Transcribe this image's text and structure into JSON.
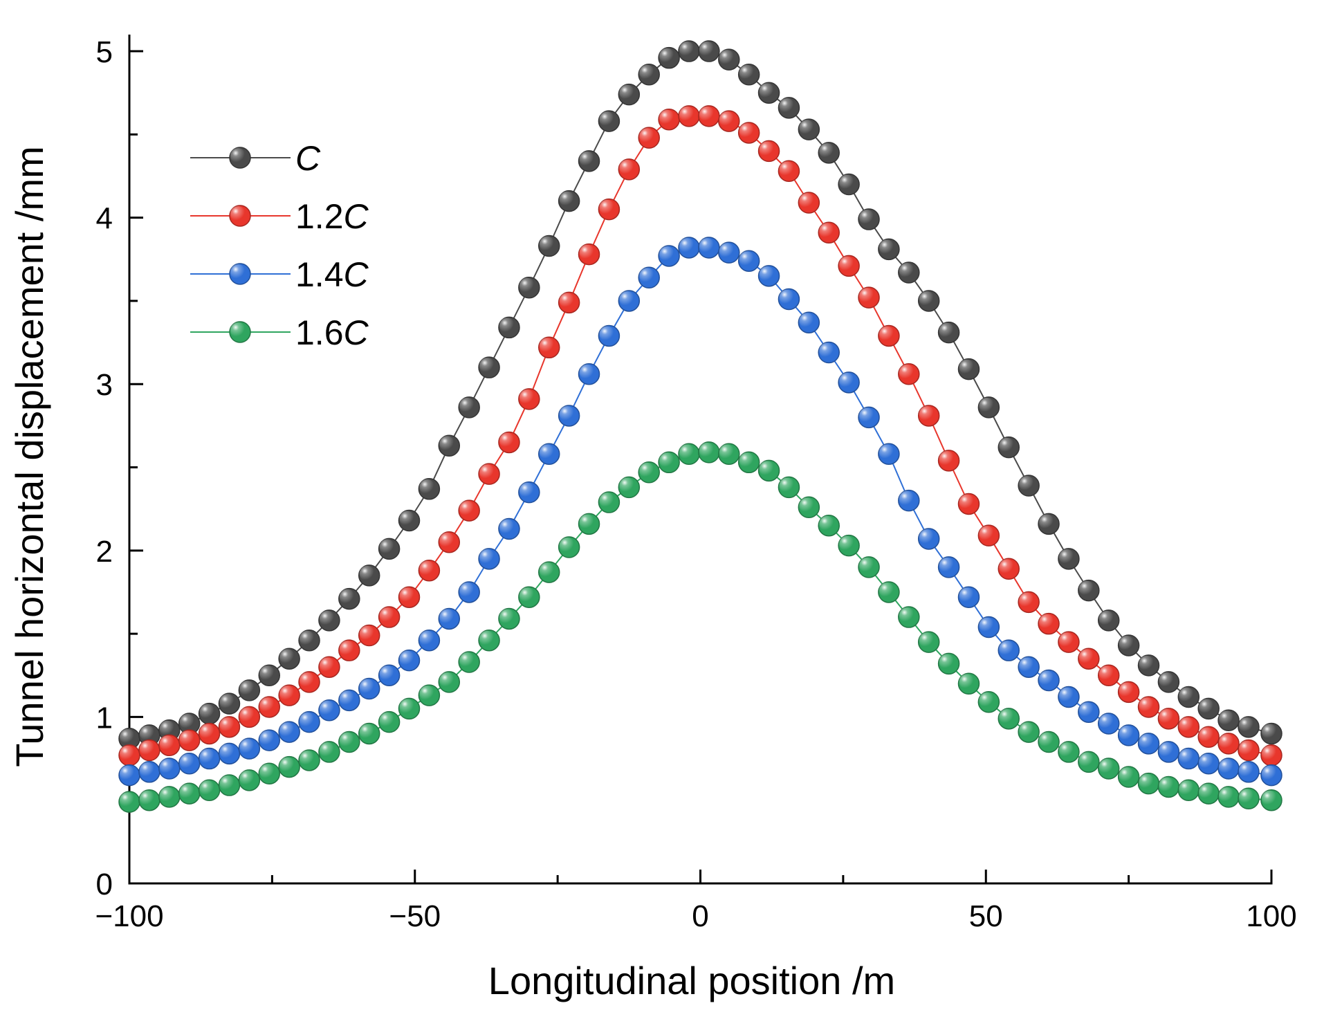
{
  "chart_data": {
    "type": "line",
    "title": "",
    "xlabel": "Longitudinal position /m",
    "ylabel": "Tunnel horizontal displacement /mm",
    "xlim": [
      -100,
      100
    ],
    "ylim": [
      0,
      5.1
    ],
    "xticks": [
      -100,
      -50,
      0,
      50,
      100
    ],
    "xtick_labels": [
      "−100",
      "−50",
      "0",
      "50",
      "100"
    ],
    "yticks": [
      0,
      1,
      2,
      3,
      4,
      5
    ],
    "ytick_labels": [
      "0",
      "1",
      "2",
      "3",
      "4",
      "5"
    ],
    "grid": false,
    "legend_position": "top-left",
    "x": [
      -100,
      -96.5,
      -93,
      -89.5,
      -86,
      -82.5,
      -79,
      -75.5,
      -72,
      -68.5,
      -65,
      -61.5,
      -58,
      -54.5,
      -51,
      -47.5,
      -44,
      -40.5,
      -37,
      -33.5,
      -30,
      -26.5,
      -23,
      -19.5,
      -16,
      -12.5,
      -9,
      -5.5,
      -2,
      1.5,
      5,
      8.5,
      12,
      15.5,
      19,
      22.5,
      26,
      29.5,
      33,
      36.5,
      40,
      43.5,
      47,
      50.5,
      54,
      57.5,
      61,
      64.5,
      68,
      71.5,
      75,
      78.5,
      82,
      85.5,
      89,
      92.5,
      96,
      100
    ],
    "series": [
      {
        "name": "C",
        "name_prefix": "",
        "name_italic": "C",
        "color": "#4a4a4a",
        "values": [
          0.87,
          0.89,
          0.92,
          0.96,
          1.02,
          1.08,
          1.16,
          1.25,
          1.35,
          1.46,
          1.58,
          1.71,
          1.85,
          2.01,
          2.18,
          2.37,
          2.63,
          2.86,
          3.1,
          3.34,
          3.58,
          3.83,
          4.1,
          4.34,
          4.58,
          4.74,
          4.86,
          4.96,
          5.0,
          5.0,
          4.95,
          4.86,
          4.75,
          4.66,
          4.53,
          4.39,
          4.2,
          3.99,
          3.81,
          3.67,
          3.5,
          3.31,
          3.09,
          2.86,
          2.62,
          2.39,
          2.16,
          1.95,
          1.76,
          1.58,
          1.43,
          1.31,
          1.21,
          1.12,
          1.05,
          0.98,
          0.94,
          0.9
        ]
      },
      {
        "name": "1.2C",
        "name_prefix": "1.2",
        "name_italic": "C",
        "color": "#e8362c",
        "values": [
          0.77,
          0.8,
          0.83,
          0.86,
          0.9,
          0.94,
          1.0,
          1.06,
          1.13,
          1.21,
          1.3,
          1.4,
          1.49,
          1.6,
          1.72,
          1.88,
          2.05,
          2.24,
          2.46,
          2.65,
          2.91,
          3.22,
          3.49,
          3.78,
          4.05,
          4.29,
          4.48,
          4.59,
          4.61,
          4.61,
          4.58,
          4.51,
          4.4,
          4.28,
          4.09,
          3.91,
          3.71,
          3.52,
          3.29,
          3.06,
          2.81,
          2.54,
          2.28,
          2.09,
          1.89,
          1.69,
          1.56,
          1.45,
          1.35,
          1.25,
          1.15,
          1.06,
          0.99,
          0.94,
          0.88,
          0.84,
          0.8,
          0.77
        ]
      },
      {
        "name": "1.4C",
        "name_prefix": "1.4",
        "name_italic": "C",
        "color": "#2f6fd6",
        "values": [
          0.65,
          0.67,
          0.69,
          0.72,
          0.75,
          0.78,
          0.81,
          0.86,
          0.91,
          0.97,
          1.04,
          1.1,
          1.17,
          1.25,
          1.34,
          1.46,
          1.59,
          1.75,
          1.95,
          2.13,
          2.35,
          2.58,
          2.81,
          3.06,
          3.29,
          3.5,
          3.64,
          3.77,
          3.82,
          3.82,
          3.79,
          3.74,
          3.65,
          3.51,
          3.37,
          3.19,
          3.01,
          2.8,
          2.58,
          2.3,
          2.07,
          1.9,
          1.72,
          1.54,
          1.4,
          1.3,
          1.22,
          1.12,
          1.03,
          0.96,
          0.89,
          0.84,
          0.79,
          0.75,
          0.72,
          0.69,
          0.67,
          0.65
        ]
      },
      {
        "name": "1.6C",
        "name_prefix": "1.6",
        "name_italic": "C",
        "color": "#2fa55f",
        "values": [
          0.49,
          0.5,
          0.52,
          0.54,
          0.56,
          0.59,
          0.62,
          0.66,
          0.7,
          0.74,
          0.79,
          0.85,
          0.9,
          0.97,
          1.05,
          1.13,
          1.21,
          1.33,
          1.46,
          1.59,
          1.72,
          1.87,
          2.02,
          2.16,
          2.29,
          2.38,
          2.47,
          2.53,
          2.58,
          2.59,
          2.58,
          2.53,
          2.48,
          2.38,
          2.26,
          2.15,
          2.03,
          1.9,
          1.75,
          1.6,
          1.45,
          1.32,
          1.2,
          1.09,
          0.99,
          0.91,
          0.85,
          0.79,
          0.73,
          0.69,
          0.64,
          0.6,
          0.58,
          0.56,
          0.54,
          0.52,
          0.51,
          0.5
        ]
      }
    ]
  }
}
